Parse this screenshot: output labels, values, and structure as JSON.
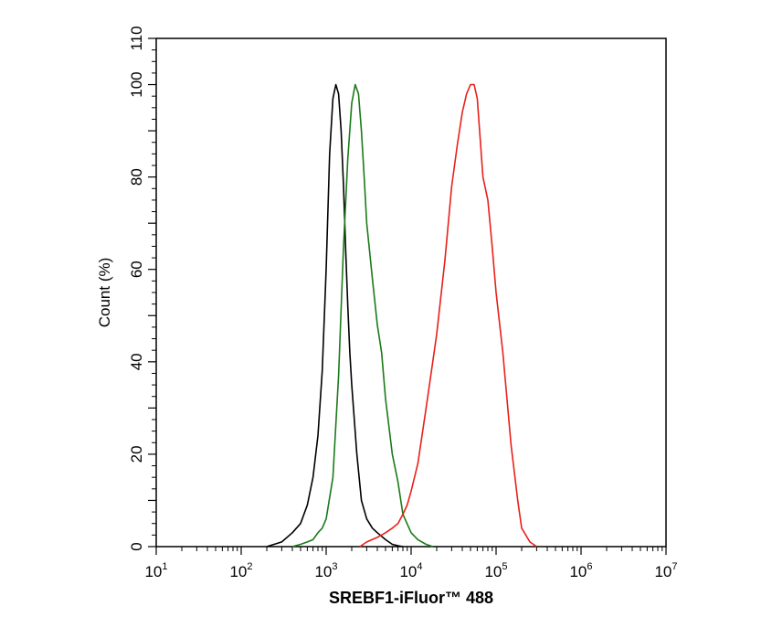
{
  "chart_data": {
    "type": "line",
    "title": "",
    "xlabel": "SREBF1-iFluor™ 488",
    "ylabel": "Count  (%)",
    "x_scale": "log",
    "xlim": [
      10,
      10000000
    ],
    "ylim": [
      0,
      110
    ],
    "x_tick_labels": [
      {
        "base": "10",
        "exp": "1"
      },
      {
        "base": "10",
        "exp": "2"
      },
      {
        "base": "10",
        "exp": "3"
      },
      {
        "base": "10",
        "exp": "4"
      },
      {
        "base": "10",
        "exp": "5"
      },
      {
        "base": "10",
        "exp": "6"
      },
      {
        "base": "10",
        "exp": "7"
      }
    ],
    "y_ticks": [
      0,
      20,
      40,
      60,
      80,
      100,
      110
    ],
    "y_tick_labels": [
      "0",
      "20",
      "40",
      "60",
      "80",
      "100",
      "110"
    ],
    "grid": false,
    "legend": "none",
    "series": [
      {
        "color": "#000000",
        "x": [
          200,
          300,
          400,
          500,
          600,
          700,
          800,
          900,
          1000,
          1100,
          1200,
          1300,
          1400,
          1500,
          1600,
          1700,
          1800,
          1900,
          2000,
          2300,
          2600,
          3000,
          3500,
          4000,
          5000,
          6000,
          7000,
          8000
        ],
        "y": [
          0,
          1,
          3,
          5,
          9,
          15,
          24,
          38,
          60,
          85,
          97,
          100,
          98,
          90,
          78,
          64,
          52,
          42,
          35,
          20,
          10,
          6,
          4,
          3,
          1.5,
          0.5,
          0.2,
          0
        ]
      },
      {
        "color": "#1a7a1a",
        "x": [
          400,
          500,
          600,
          700,
          800,
          900,
          1000,
          1200,
          1400,
          1600,
          1800,
          2000,
          2200,
          2400,
          2600,
          2800,
          3000,
          3500,
          4000,
          4500,
          5000,
          6000,
          7000,
          8000,
          10000,
          12000,
          15000,
          18000
        ],
        "y": [
          0,
          0.5,
          1,
          1.5,
          3,
          4,
          6,
          15,
          37,
          65,
          84,
          96,
          100,
          98,
          90,
          80,
          70,
          58,
          48,
          42,
          32,
          20,
          14,
          7,
          3,
          1.5,
          0.5,
          0
        ]
      },
      {
        "color": "#e8201a",
        "x": [
          2500,
          3000,
          4000,
          5000,
          6000,
          7000,
          8000,
          9000,
          10000,
          12000,
          15000,
          18000,
          20000,
          25000,
          30000,
          35000,
          40000,
          45000,
          50000,
          55000,
          60000,
          70000,
          80000,
          90000,
          100000,
          120000,
          150000,
          180000,
          200000,
          250000,
          300000
        ],
        "y": [
          0,
          1,
          2,
          3,
          4,
          5,
          7,
          9,
          12,
          18,
          30,
          40,
          46,
          62,
          78,
          87,
          94,
          98,
          100,
          100,
          97,
          80,
          75,
          65,
          55,
          42,
          22,
          10,
          4,
          1,
          0
        ]
      }
    ]
  }
}
